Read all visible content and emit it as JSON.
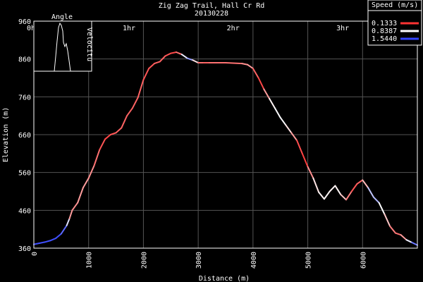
{
  "chart_data": {
    "type": "line",
    "title": "Zig Zag Trail, Hall Cr Rd",
    "subtitle": "20130228",
    "xlabel": "Distance (m)",
    "ylabel": "Elevation (m)",
    "xlim": [
      0,
      7000
    ],
    "ylim": [
      360,
      960
    ],
    "x_ticks": [
      "0",
      "1000",
      "2000",
      "3000",
      "4000",
      "5000",
      "6000"
    ],
    "y_ticks": [
      "360",
      "460",
      "560",
      "660",
      "760",
      "860",
      "960"
    ],
    "time_ticks": [
      {
        "label": "0h",
        "distance": 0
      },
      {
        "label": "1hr",
        "distance": 1750
      },
      {
        "label": "2hr",
        "distance": 3650
      },
      {
        "label": "3hr",
        "distance": 5650
      }
    ],
    "grid": true,
    "legend": {
      "title": "Speed (m/s)",
      "position": "top-right",
      "entries": [
        {
          "label": "0.1333",
          "color": "#ff3333"
        },
        {
          "label": "0.8387",
          "color": "#ffffff"
        },
        {
          "label": "1.5440",
          "color": "#3344ff"
        }
      ]
    },
    "inset": {
      "position": "top-left",
      "left_label": "Angle",
      "right_label": "Velocitu"
    },
    "series": [
      {
        "x": [
          0,
          100,
          200,
          300,
          400,
          500,
          600,
          650,
          700,
          800,
          900,
          1000,
          1100,
          1200,
          1300,
          1400,
          1500,
          1600,
          1700,
          1800,
          1900,
          2000,
          2100,
          2200,
          2300,
          2400,
          2500,
          2600,
          2700,
          2800,
          2900,
          3000,
          3100,
          3200,
          3500,
          3800,
          3900,
          4000,
          4100,
          4200,
          4300,
          4400,
          4500,
          4600,
          4700,
          4800,
          4900,
          5000,
          5100,
          5200,
          5300,
          5400,
          5500,
          5600,
          5700,
          5800,
          5900,
          6000,
          6100,
          6200,
          6300,
          6400,
          6500,
          6600,
          6700,
          6800,
          6900,
          7000
        ],
        "y": [
          370,
          373,
          376,
          380,
          386,
          398,
          420,
          438,
          460,
          480,
          520,
          545,
          578,
          620,
          648,
          660,
          665,
          678,
          710,
          730,
          758,
          805,
          835,
          848,
          853,
          868,
          875,
          878,
          872,
          862,
          857,
          850,
          850,
          850,
          850,
          848,
          845,
          835,
          810,
          780,
          755,
          730,
          705,
          685,
          665,
          645,
          610,
          575,
          545,
          508,
          490,
          510,
          525,
          502,
          488,
          510,
          530,
          540,
          520,
          495,
          480,
          450,
          418,
          400,
          395,
          382,
          375,
          368
        ],
        "speed": [
          1.5,
          1.5,
          1.5,
          1.5,
          1.5,
          1.5,
          1.3,
          0.6,
          0.4,
          0.5,
          0.5,
          0.5,
          0.4,
          0.3,
          0.2,
          0.2,
          0.3,
          0.3,
          0.3,
          0.3,
          0.3,
          0.3,
          0.2,
          0.3,
          0.3,
          0.3,
          0.2,
          0.2,
          0.5,
          1.3,
          1.1,
          0.4,
          0.3,
          0.3,
          0.4,
          0.3,
          0.6,
          0.4,
          0.2,
          0.2,
          0.8,
          0.8,
          0.9,
          0.8,
          0.7,
          0.3,
          0.15,
          0.2,
          0.7,
          0.8,
          0.8,
          0.8,
          0.8,
          0.8,
          0.5,
          0.3,
          0.2,
          0.4,
          0.8,
          1.3,
          0.9,
          0.8,
          0.5,
          0.3,
          0.4,
          0.6,
          1.2,
          1.5
        ]
      }
    ]
  }
}
